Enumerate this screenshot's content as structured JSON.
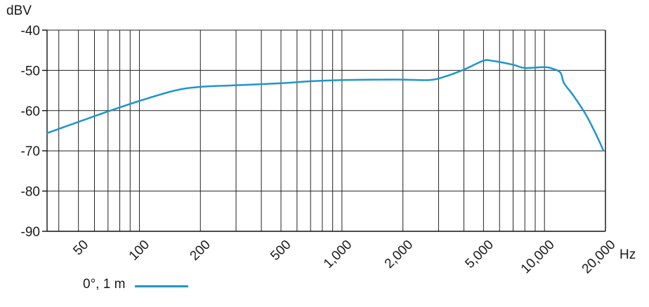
{
  "chart_data": {
    "type": "line",
    "ylabel": "dBV",
    "xlabel": "Hz",
    "x_scale": "log",
    "xlim": [
      35,
      20000
    ],
    "ylim": [
      -90,
      -40
    ],
    "grid": true,
    "legend_position": "bottom-left",
    "y_ticks": [
      -40,
      -50,
      -60,
      -70,
      -80,
      -90
    ],
    "y_tick_labels": [
      "-40",
      "-50",
      "-60",
      "-70",
      "-80",
      "-90"
    ],
    "x_ticks": [
      50,
      100,
      200,
      500,
      1000,
      2000,
      5000,
      10000,
      20000
    ],
    "x_tick_labels": [
      "50",
      "100",
      "200",
      "500",
      "1,000",
      "2,000",
      "5,000",
      "10,000",
      "20,000"
    ],
    "x_gridlines": [
      40,
      50,
      60,
      70,
      80,
      90,
      100,
      200,
      300,
      400,
      500,
      600,
      700,
      800,
      900,
      1000,
      2000,
      3000,
      4000,
      5000,
      6000,
      7000,
      8000,
      9000,
      10000,
      20000
    ],
    "series": [
      {
        "name": "0°, 1 m",
        "color": "#1f95cc",
        "points": [
          [
            35,
            -65.6
          ],
          [
            50,
            -62.8
          ],
          [
            70,
            -60.2
          ],
          [
            100,
            -57.6
          ],
          [
            150,
            -55.0
          ],
          [
            200,
            -54.1
          ],
          [
            300,
            -53.7
          ],
          [
            500,
            -53.2
          ],
          [
            700,
            -52.7
          ],
          [
            1000,
            -52.4
          ],
          [
            1500,
            -52.3
          ],
          [
            2000,
            -52.3
          ],
          [
            2700,
            -52.4
          ],
          [
            3200,
            -51.6
          ],
          [
            4000,
            -49.8
          ],
          [
            5000,
            -47.6
          ],
          [
            5500,
            -47.6
          ],
          [
            7000,
            -48.6
          ],
          [
            8000,
            -49.4
          ],
          [
            10000,
            -49.2
          ],
          [
            11000,
            -49.6
          ],
          [
            12000,
            -50.6
          ],
          [
            12500,
            -53.2
          ],
          [
            14000,
            -56.5
          ],
          [
            16000,
            -61.0
          ],
          [
            18000,
            -66.0
          ],
          [
            19500,
            -69.8
          ]
        ]
      }
    ]
  }
}
